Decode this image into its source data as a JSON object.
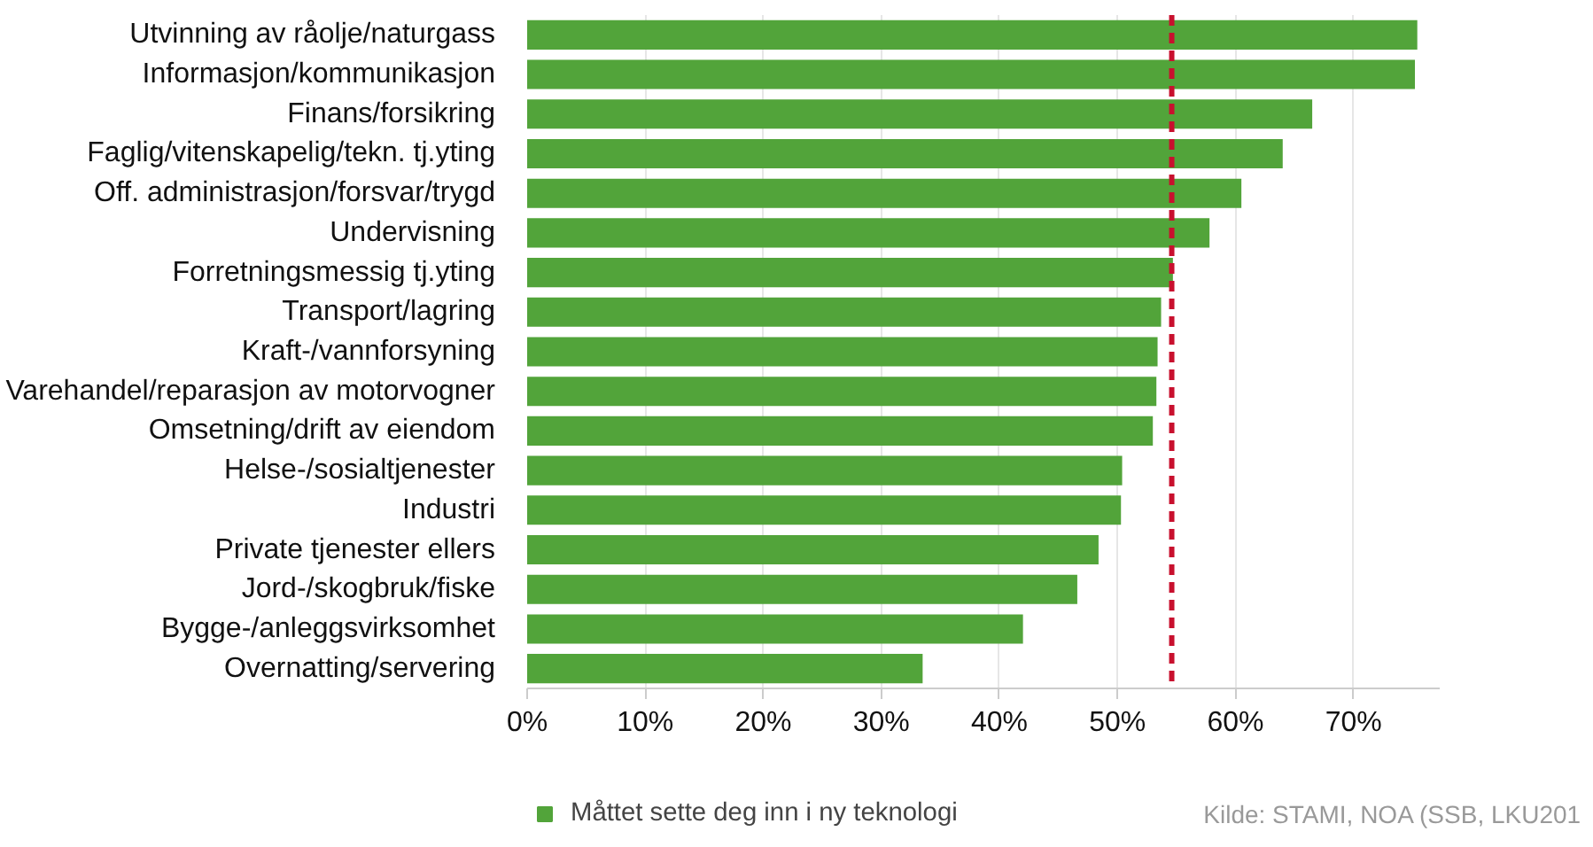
{
  "chart_data": {
    "type": "bar",
    "orientation": "horizontal",
    "categories": [
      "Utvinning av råolje/naturgass",
      "Informasjon/kommunikasjon",
      "Finans/forsikring",
      "Faglig/vitenskapelig/tekn. tj.yting",
      "Off. administrasjon/forsvar/trygd",
      "Undervisning",
      "Forretningsmessig tj.yting",
      "Transport/lagring",
      "Kraft-/vannforsyning",
      "Varehandel/reparasjon av motorvogner",
      "Omsetning/drift av eiendom",
      "Helse-/sosialtjenester",
      "Industri",
      "Private tjenester ellers",
      "Jord-/skogbruk/fiske",
      "Bygge-/anleggsvirksomhet",
      "Overnatting/servering"
    ],
    "series": [
      {
        "name": "Måttet sette deg inn i ny teknologi",
        "color": "#52a43a",
        "values": [
          75.4,
          75.2,
          66.5,
          64.0,
          60.5,
          57.8,
          54.7,
          53.7,
          53.4,
          53.3,
          53.0,
          50.4,
          50.3,
          48.4,
          46.6,
          42.0,
          33.5
        ]
      }
    ],
    "xlim": [
      0,
      77.3
    ],
    "xticks": [
      {
        "value": 0,
        "label": "0%"
      },
      {
        "value": 10,
        "label": "10%"
      },
      {
        "value": 20,
        "label": "20%"
      },
      {
        "value": 30,
        "label": "30%"
      },
      {
        "value": 40,
        "label": "40%"
      },
      {
        "value": 50,
        "label": "50%"
      },
      {
        "value": 60,
        "label": "60%"
      },
      {
        "value": 70,
        "label": "70%"
      }
    ],
    "ref_lines": [
      {
        "axis": "x",
        "value": 54.6,
        "color": "#c8102e",
        "line_style": "dashed"
      }
    ],
    "grid": "x",
    "legend": "bottom left",
    "annotations": [
      "Kilde: STAMI, NOA (SSB, LKU201"
    ]
  }
}
